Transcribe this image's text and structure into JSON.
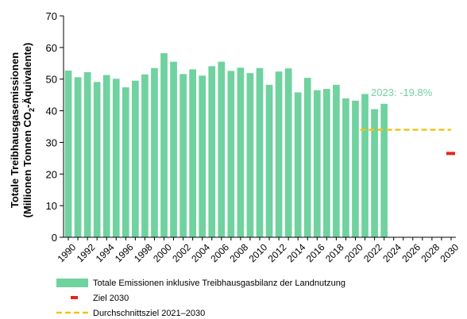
{
  "colors": {
    "bar": "#6fd29f",
    "target": "#e8231d",
    "average_target": "#f2c316",
    "annotation": "#6fd29f",
    "axis": "#000000"
  },
  "chart_data": {
    "type": "bar",
    "ylabel_line1": "Totale Treibhausgasemissionen",
    "ylabel_line2_pre": "(Millionen Tonnen CO",
    "ylabel_line2_sub": "2",
    "ylabel_line2_post": "-Äquivalente)",
    "ylim": [
      0,
      70
    ],
    "yticks": [
      0,
      10,
      20,
      30,
      40,
      50,
      60,
      70
    ],
    "xlim": [
      1990,
      2030
    ],
    "xtick_labels": [
      "1990",
      "1992",
      "1994",
      "1996",
      "1998",
      "2000",
      "2002",
      "2004",
      "2006",
      "2008",
      "2010",
      "2012",
      "2014",
      "2016",
      "2018",
      "2020",
      "2022",
      "2024",
      "2026",
      "2028",
      "2030"
    ],
    "grid": false,
    "series": [
      {
        "name": "Totale Emissionen inklusive Treibhausgasbilanz der Landnutzung",
        "type": "bar",
        "x": [
          1990,
          1991,
          1992,
          1993,
          1994,
          1995,
          1996,
          1997,
          1998,
          1999,
          2000,
          2001,
          2002,
          2003,
          2004,
          2005,
          2006,
          2007,
          2008,
          2009,
          2010,
          2011,
          2012,
          2013,
          2014,
          2015,
          2016,
          2017,
          2018,
          2019,
          2020,
          2021,
          2022,
          2023
        ],
        "values": [
          52.7,
          50.6,
          52.2,
          49.1,
          51.3,
          50.1,
          47.4,
          49.5,
          51.5,
          53.5,
          58.2,
          55.5,
          51.6,
          53.1,
          51.1,
          54.1,
          55.5,
          52.6,
          53.6,
          51.9,
          53.5,
          48.2,
          52.4,
          53.4,
          45.8,
          50.4,
          46.5,
          46.9,
          48.2,
          43.9,
          43.2,
          45.3,
          40.5,
          42.2
        ]
      },
      {
        "name": "Ziel 2030",
        "type": "marker",
        "x": 2030,
        "value": 26.5
      },
      {
        "name": "Durchschnittsziel 2021–2030",
        "type": "dashed-line",
        "x_range": [
          2021,
          2030
        ],
        "value": 34
      }
    ],
    "annotation": {
      "text": "2023: -19.8%"
    },
    "legend_position": "bottom"
  }
}
